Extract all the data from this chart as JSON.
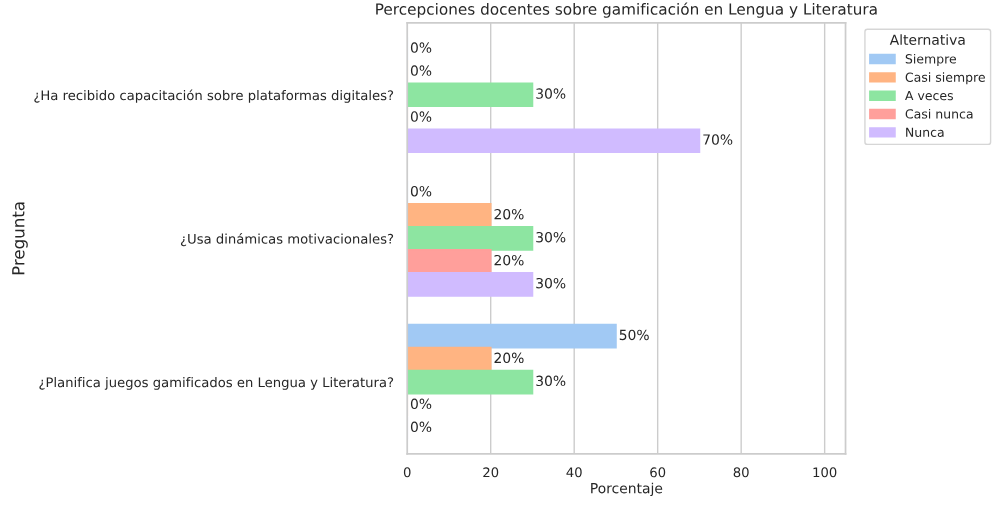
{
  "chart_data": {
    "type": "bar",
    "orientation": "horizontal",
    "title": "Percepciones docentes sobre gamificación en Lengua y Literatura",
    "xlabel": "Porcentaje",
    "ylabel": "Pregunta",
    "legend_title": "Alternativa",
    "legend": "top right",
    "grid": "x",
    "xlim": [
      0,
      105
    ],
    "xticks": [
      0,
      20,
      40,
      60,
      80,
      100
    ],
    "categories": [
      "¿Ha recibido capacitación sobre plataformas digitales?",
      "¿Usa dinámicas motivacionales?",
      "¿Planifica juegos gamificados en Lengua y Literatura?"
    ],
    "series": [
      {
        "name": "Siempre",
        "color": "#a1c9f4",
        "values": [
          0,
          0,
          50
        ],
        "value_labels": [
          "0%",
          "0%",
          "50%"
        ]
      },
      {
        "name": "Casi siempre",
        "color": "#ffb482",
        "values": [
          0,
          20,
          20
        ],
        "value_labels": [
          "0%",
          "20%",
          "20%"
        ]
      },
      {
        "name": "A veces",
        "color": "#8de5a1",
        "values": [
          30,
          30,
          30
        ],
        "value_labels": [
          "30%",
          "30%",
          "30%"
        ]
      },
      {
        "name": "Casi nunca",
        "color": "#ff9f9b",
        "values": [
          0,
          20,
          0
        ],
        "value_labels": [
          "0%",
          "20%",
          "0%"
        ]
      },
      {
        "name": "Nunca",
        "color": "#d0bbff",
        "values": [
          70,
          30,
          0
        ],
        "value_labels": [
          "70%",
          "30%",
          "0%"
        ]
      }
    ]
  }
}
